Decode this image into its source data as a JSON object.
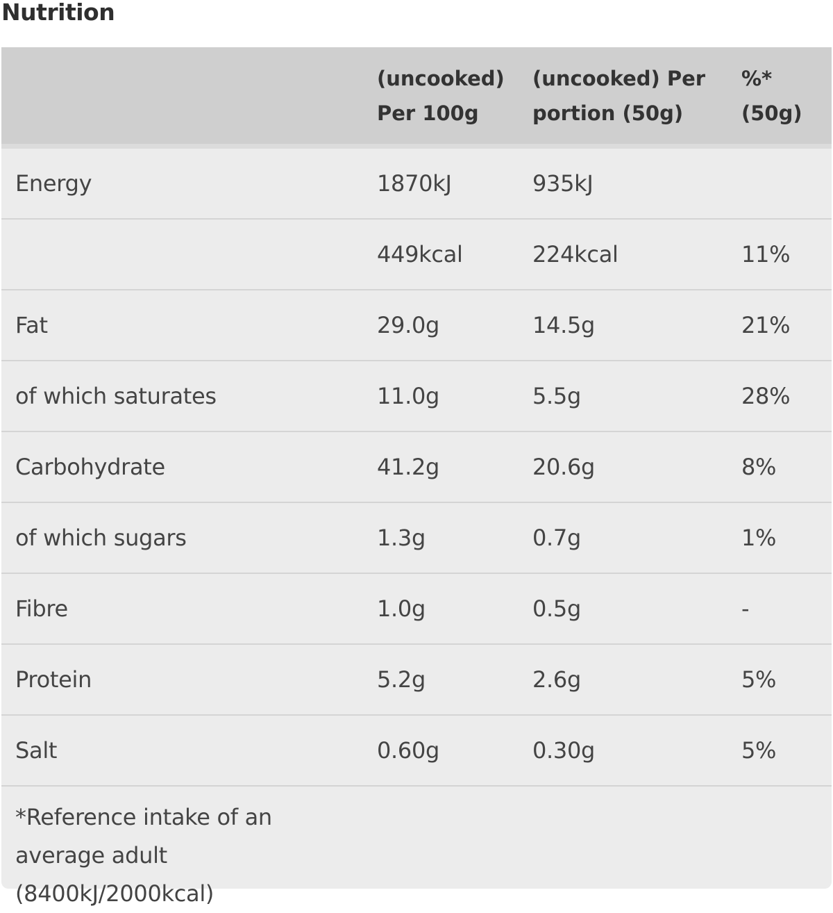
{
  "title": "Nutrition",
  "table": {
    "headers": [
      "",
      "(uncooked) Per 100g",
      "(uncooked) Per portion (50g)",
      "%* (50g)"
    ],
    "rows": [
      [
        "Energy",
        "1870kJ",
        "935kJ",
        ""
      ],
      [
        "",
        "449kcal",
        "224kcal",
        "11%"
      ],
      [
        "Fat",
        "29.0g",
        "14.5g",
        "21%"
      ],
      [
        "of which saturates",
        "11.0g",
        "5.5g",
        "28%"
      ],
      [
        "Carbohydrate",
        "41.2g",
        "20.6g",
        "8%"
      ],
      [
        "of which sugars",
        "1.3g",
        "0.7g",
        "1%"
      ],
      [
        "Fibre",
        "1.0g",
        "0.5g",
        "-"
      ],
      [
        "Protein",
        "5.2g",
        "2.6g",
        "5%"
      ],
      [
        "Salt",
        "0.60g",
        "0.30g",
        "5%"
      ]
    ],
    "footnote": "*Reference intake of an average adult (8400kJ/2000kcal)"
  },
  "colors": {
    "header_bg": "#cfcfcf",
    "row_bg": "#ececec",
    "divider": "#d4d4d4"
  }
}
